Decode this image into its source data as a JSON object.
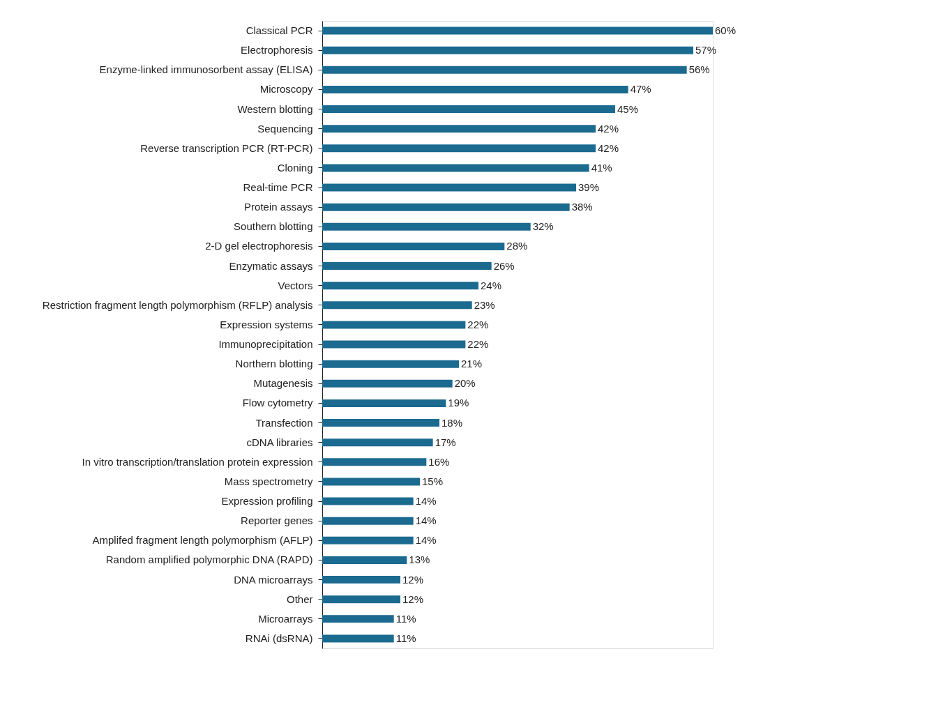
{
  "chart_data": {
    "type": "bar",
    "orientation": "horizontal",
    "color": "#1b6a90",
    "categories": [
      "Classical PCR",
      "Electrophoresis",
      "Enzyme-linked immunosorbent assay (ELISA)",
      "Microscopy",
      "Western blotting",
      "Sequencing",
      "Reverse transcription PCR (RT-PCR)",
      "Cloning",
      "Real-time PCR",
      "Protein assays",
      "Southern blotting",
      "2-D gel electrophoresis",
      "Enzymatic assays",
      "Vectors",
      "Restriction fragment length polymorphism (RFLP) analysis",
      "Expression systems",
      "Immunoprecipitation",
      "Northern blotting",
      "Mutagenesis",
      "Flow cytometry",
      "Transfection",
      "cDNA libraries",
      "In vitro transcription/translation protein expression",
      "Mass spectrometry",
      "Expression profiling",
      "Reporter genes",
      "Amplifed fragment length polymorphism (AFLP)",
      "Random amplified polymorphic DNA (RAPD)",
      "DNA microarrays",
      "Other",
      "Microarrays",
      "RNAi (dsRNA)"
    ],
    "values": [
      60,
      57,
      56,
      47,
      45,
      42,
      42,
      41,
      39,
      38,
      32,
      28,
      26,
      24,
      23,
      22,
      22,
      21,
      20,
      19,
      18,
      17,
      16,
      15,
      14,
      14,
      14,
      13,
      12,
      12,
      11,
      11
    ],
    "value_labels": [
      "60%",
      "57%",
      "56%",
      "47%",
      "45%",
      "42%",
      "42%",
      "41%",
      "39%",
      "38%",
      "32%",
      "28%",
      "26%",
      "24%",
      "23%",
      "22%",
      "22%",
      "21%",
      "20%",
      "19%",
      "18%",
      "17%",
      "16%",
      "15%",
      "14%",
      "14%",
      "14%",
      "13%",
      "12%",
      "12%",
      "11%",
      "11%"
    ],
    "grid": false,
    "tick_labels": "y"
  }
}
